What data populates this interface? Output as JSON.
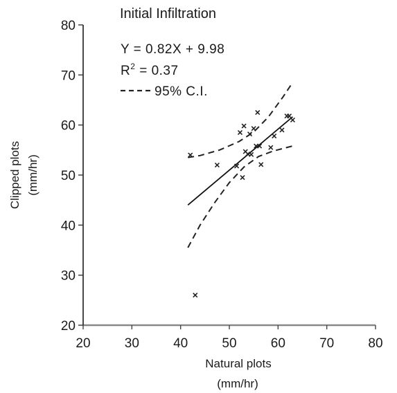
{
  "chart_data": {
    "type": "scatter",
    "title": "Initial Infiltration",
    "xlabel_line1": "Natural plots",
    "xlabel_line2": "(mm/hr)",
    "ylabel_line1": "Clipped plots",
    "ylabel_line2": "(mm/hr)",
    "xlim": [
      20,
      80
    ],
    "ylim": [
      20,
      80
    ],
    "xticks": [
      "20",
      "30",
      "40",
      "50",
      "60",
      "70",
      "80"
    ],
    "yticks": [
      "20",
      "30",
      "40",
      "50",
      "60",
      "70",
      "80"
    ],
    "grid": false,
    "annotations": {
      "equation": "Y = 0.82X + 9.98",
      "r2_prefix": "R",
      "r2_sup": "2",
      "r2_value": " = 0.37",
      "ci_label": "95% C.I."
    },
    "points": [
      {
        "x": 42,
        "y": 54
      },
      {
        "x": 43,
        "y": 26
      },
      {
        "x": 47.5,
        "y": 52
      },
      {
        "x": 51.5,
        "y": 51.8
      },
      {
        "x": 52.2,
        "y": 58.5
      },
      {
        "x": 52.7,
        "y": 49.5
      },
      {
        "x": 53,
        "y": 59.8
      },
      {
        "x": 53.3,
        "y": 54.7
      },
      {
        "x": 53.8,
        "y": 54.2
      },
      {
        "x": 54.2,
        "y": 58.2
      },
      {
        "x": 54.5,
        "y": 54.1
      },
      {
        "x": 55,
        "y": 59.3
      },
      {
        "x": 55.5,
        "y": 55.8
      },
      {
        "x": 55.8,
        "y": 62.5
      },
      {
        "x": 56.2,
        "y": 55.8
      },
      {
        "x": 56.5,
        "y": 52.1
      },
      {
        "x": 58.5,
        "y": 55.5
      },
      {
        "x": 59.2,
        "y": 57.8
      },
      {
        "x": 60.8,
        "y": 59
      },
      {
        "x": 61.8,
        "y": 61.8
      },
      {
        "x": 62.3,
        "y": 61.8
      },
      {
        "x": 63,
        "y": 61
      }
    ],
    "regression": {
      "slope": 0.82,
      "intercept": 9.98,
      "x_range": [
        41.5,
        63
      ]
    },
    "ci_upper": [
      [
        41.5,
        53.5
      ],
      [
        44,
        53.9
      ],
      [
        48,
        55
      ],
      [
        52,
        56.7
      ],
      [
        55,
        58.6
      ],
      [
        58,
        61.6
      ],
      [
        61,
        65.6
      ],
      [
        63,
        68.5
      ]
    ],
    "ci_lower": [
      [
        41.5,
        35.5
      ],
      [
        44,
        40
      ],
      [
        47,
        44.5
      ],
      [
        50,
        48.5
      ],
      [
        53,
        51.6
      ],
      [
        56,
        53.7
      ],
      [
        59,
        54.8
      ],
      [
        63,
        55.8
      ]
    ]
  }
}
